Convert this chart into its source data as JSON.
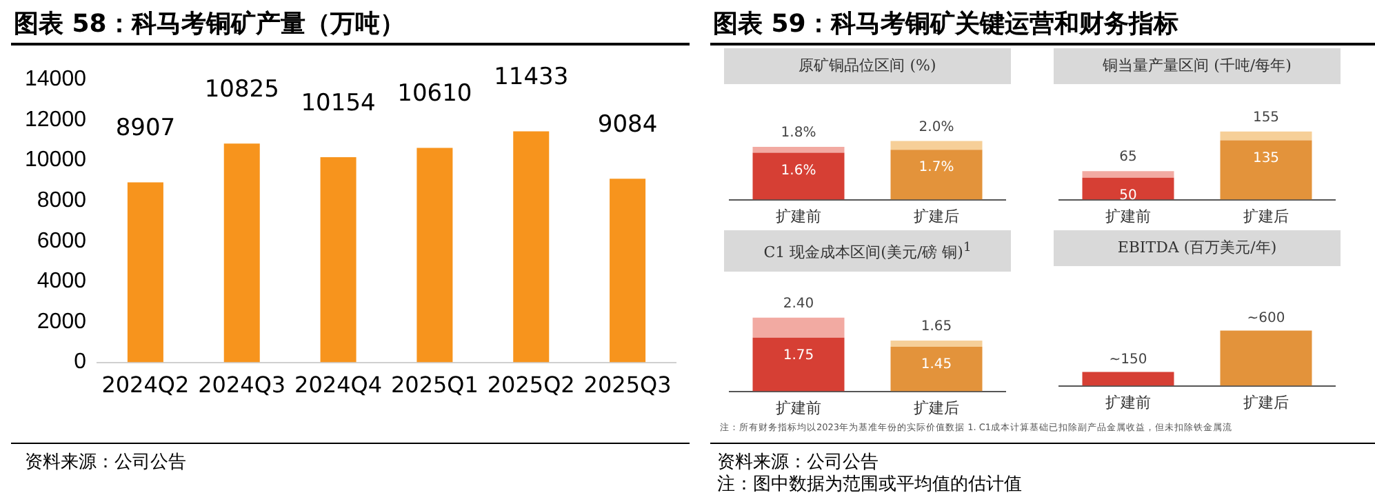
{
  "chart_data": [
    {
      "type": "bar",
      "title": "图表 58：科马考铜矿产量（万吨）",
      "categories": [
        "2024Q2",
        "2024Q3",
        "2024Q4",
        "2025Q1",
        "2025Q2",
        "2025Q3"
      ],
      "values": [
        8907,
        10825,
        10154,
        10610,
        11433,
        9084
      ],
      "color": "#f7941d",
      "ylim": [
        0,
        14000
      ],
      "yticks": [
        0,
        2000,
        4000,
        6000,
        8000,
        10000,
        12000,
        14000
      ],
      "data_labels": true,
      "annotations": [
        "资料来源：公司公告"
      ]
    },
    {
      "type": "other",
      "title": "图表 59：科马考铜矿关键运营和财务指标",
      "annotations": [
        "注：所有财务指标均以2023年为基准年份的实际价值数据 1. C1成本计算基础已扣除副产品金属收益，但未扣除铁金属流",
        "资料来源：公司公告",
        "注：图中数据为范围或平均值的估计值"
      ]
    },
    {
      "type": "bar",
      "title": "原矿铜品位区间 (%)",
      "categories": [
        "扩建前",
        "扩建后"
      ],
      "stacked": true,
      "totals": [
        "1.8%",
        "2.0%"
      ],
      "series": [
        {
          "values": [
            1.6,
            1.7
          ],
          "colors": [
            "#d63f34",
            "#e3933b"
          ],
          "value_labels": [
            "1.6%",
            "1.7%"
          ]
        },
        {
          "values": [
            0.2,
            0.3
          ],
          "colors": [
            "#f2aaa2",
            "#f6cf98"
          ]
        }
      ]
    },
    {
      "type": "bar",
      "title": "铜当量产量区间 (千吨/每年)",
      "categories": [
        "扩建前",
        "扩建后"
      ],
      "stacked": true,
      "totals": [
        "65",
        "155"
      ],
      "series": [
        {
          "values": [
            50,
            135
          ],
          "colors": [
            "#d63f34",
            "#e3933b"
          ],
          "value_labels": [
            "50",
            "135"
          ]
        },
        {
          "values": [
            15,
            20
          ],
          "colors": [
            "#f2aaa2",
            "#f6cf98"
          ]
        }
      ]
    },
    {
      "type": "bar",
      "title": "C1 现金成本区间(美元/磅 铜)$^{1}$",
      "categories": [
        "扩建前",
        "扩建后"
      ],
      "stacked": true,
      "totals": [
        "2.40",
        "1.65"
      ],
      "series": [
        {
          "values": [
            1.75,
            1.45
          ],
          "colors": [
            "#d63f34",
            "#e3933b"
          ],
          "value_labels": [
            "1.75",
            "1.45"
          ]
        },
        {
          "values": [
            0.65,
            0.2
          ],
          "colors": [
            "#f2aaa2",
            "#f6cf98"
          ]
        }
      ]
    },
    {
      "type": "bar",
      "title": "EBITDA (百万美元/年)",
      "categories": [
        "扩建前",
        "扩建后"
      ],
      "values": [
        150,
        600
      ],
      "colors": [
        "#d63f34",
        "#e3933b"
      ],
      "value_labels": [
        "~150",
        "~600"
      ]
    }
  ]
}
